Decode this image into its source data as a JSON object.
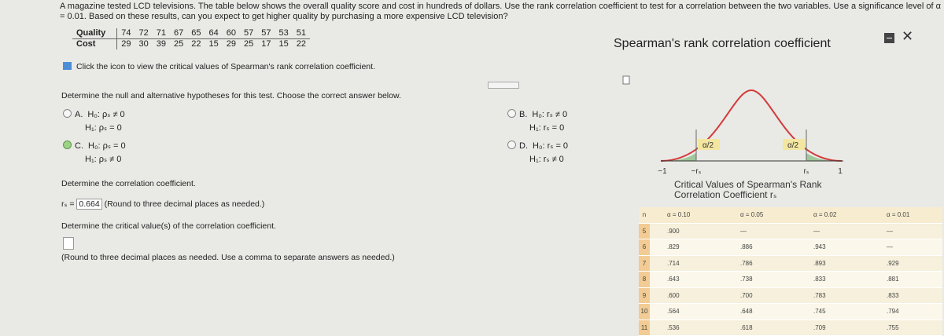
{
  "question": {
    "text": "A magazine tested LCD televisions. The table below shows the overall quality score and cost in hundreds of dollars. Use the rank correlation coefficient to test for a correlation between the two variables. Use a significance level of α = 0.01. Based on these results, can you expect to get higher quality by purchasing a more expensive LCD television?"
  },
  "data_table": {
    "rows": [
      [
        "Quality",
        "74",
        "72",
        "71",
        "67",
        "65",
        "64",
        "60",
        "57",
        "57",
        "53",
        "51"
      ],
      [
        "Cost",
        "29",
        "30",
        "39",
        "25",
        "22",
        "15",
        "29",
        "25",
        "17",
        "15",
        "22"
      ]
    ]
  },
  "hint": "Click the icon to view the critical values of Spearman's rank correlation coefficient.",
  "part1": {
    "prompt": "Determine the null and alternative hypotheses for this test. Choose the correct answer below.",
    "options": [
      {
        "letter": "A.",
        "h0": "H₀: ρₛ ≠ 0",
        "h1": "H₁: ρₛ = 0"
      },
      {
        "letter": "B.",
        "h0": "H₀: rₛ ≠ 0",
        "h1": "H₁: rₛ = 0"
      },
      {
        "letter": "C.",
        "h0": "H₀: ρₛ = 0",
        "h1": "H₁: ρₛ ≠ 0"
      },
      {
        "letter": "D.",
        "h0": "H₀: rₛ = 0",
        "h1": "H₁: rₛ ≠ 0"
      }
    ]
  },
  "part2": {
    "prompt": "Determine the correlation coefficient.",
    "label": "rₛ =",
    "answer": "0.664",
    "note": "(Round to three decimal places as needed.)"
  },
  "part3": {
    "prompt": "Determine the critical value(s) of the correlation coefficient.",
    "note": "(Round to three decimal places as needed. Use a comma to separate answers as needed.)"
  },
  "popup": {
    "title": "Spearman's rank correlation coefficient",
    "graph": {
      "tail_left": "α/2",
      "tail_right": "α/2",
      "axis_labels": [
        "−1",
        "−rₛ",
        "rₛ",
        "1"
      ]
    },
    "table_title": [
      "Critical Values of Spearman's Rank",
      "Correlation Coefficient rₛ"
    ],
    "headers": [
      "n",
      "α = 0.10",
      "α = 0.05",
      "α = 0.02",
      "α = 0.01"
    ],
    "rows": [
      [
        "5",
        ".900",
        "—",
        "—",
        "—"
      ],
      [
        "6",
        ".829",
        ".886",
        ".943",
        "—"
      ],
      [
        "7",
        ".714",
        ".786",
        ".893",
        ".929"
      ],
      [
        "8",
        ".643",
        ".738",
        ".833",
        ".881"
      ],
      [
        "9",
        ".600",
        ".700",
        ".783",
        ".833"
      ],
      [
        "10",
        ".564",
        ".648",
        ".745",
        ".794"
      ],
      [
        "11",
        ".536",
        ".618",
        ".709",
        ".755"
      ]
    ]
  }
}
